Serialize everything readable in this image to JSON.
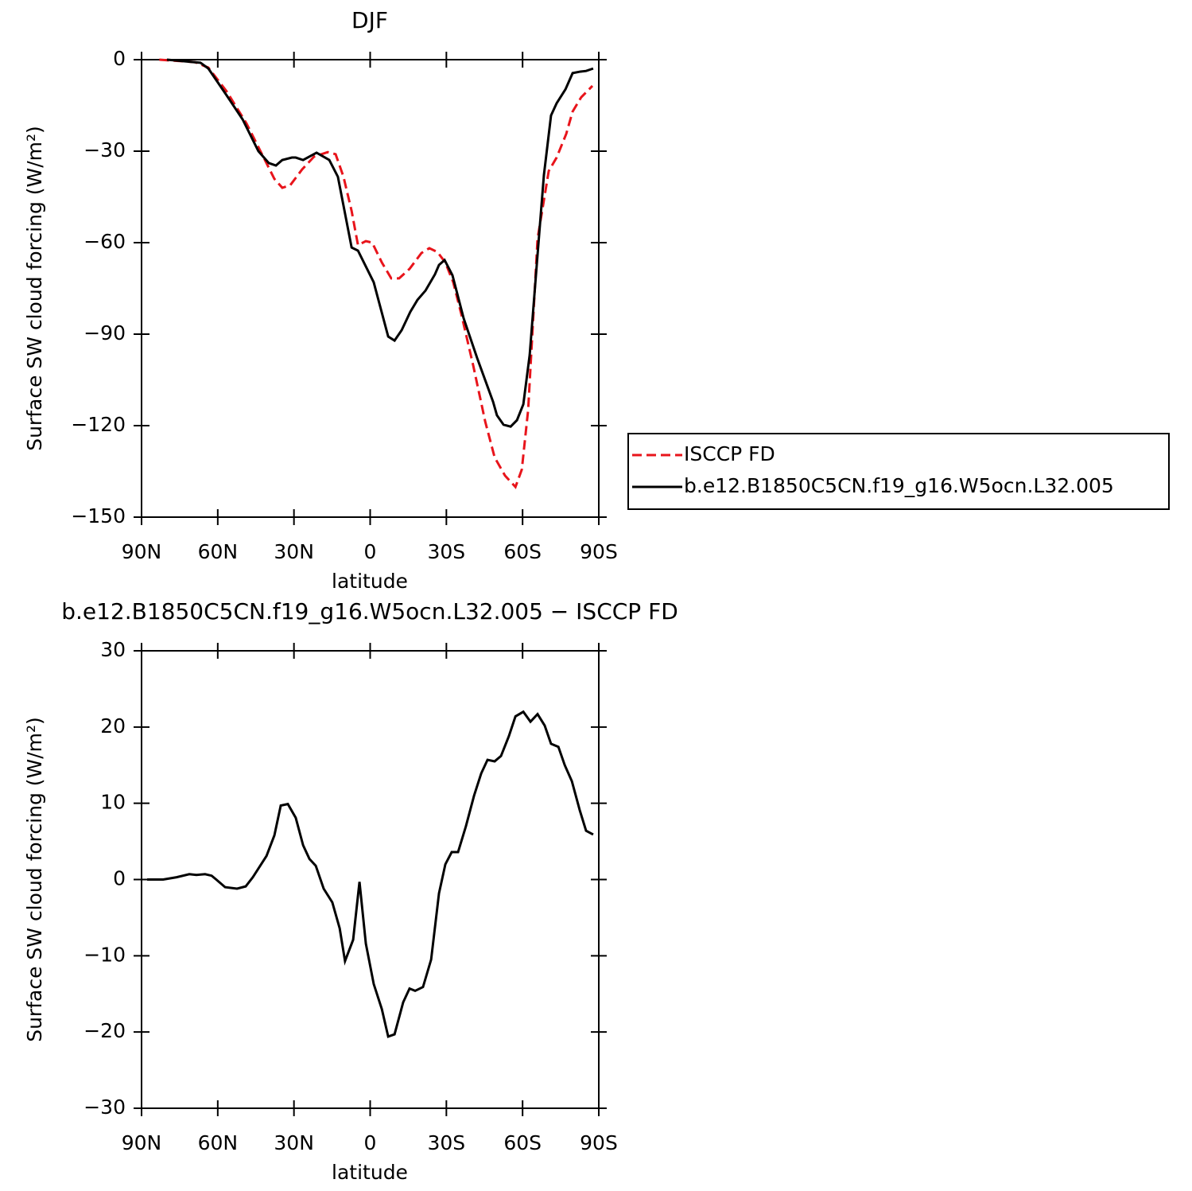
{
  "chart_data": [
    {
      "type": "line",
      "title": "DJF",
      "xlabel": "latitude",
      "ylabel": "Surface SW cloud forcing (W/m²)",
      "xlim": [
        90,
        -90
      ],
      "xticks": [
        {
          "value": 90,
          "label": "90N"
        },
        {
          "value": 60,
          "label": "60N"
        },
        {
          "value": 30,
          "label": "30N"
        },
        0,
        {
          "value": -30,
          "label": "30S"
        },
        {
          "value": -60,
          "label": "60S"
        },
        {
          "value": -90,
          "label": "90S"
        }
      ],
      "ylim": [
        -150,
        0
      ],
      "yticks": [
        {
          "value": -150,
          "label": "−150"
        },
        {
          "value": -120,
          "label": "−120"
        },
        {
          "value": -90,
          "label": "−90"
        },
        {
          "value": -60,
          "label": "−60"
        },
        {
          "value": -30,
          "label": "−30"
        },
        0
      ],
      "legend": "outside-right",
      "series": [
        {
          "name": "ISCCP FD",
          "color": "#e8141b",
          "line_style": "dashed",
          "x": [
            83,
            69,
            63.7,
            56.5,
            48.7,
            42.4,
            37.7,
            34.6,
            31.5,
            26.8,
            22.1,
            16.7,
            13.6,
            10.5,
            7.3,
            4.8,
            1.7,
            -0.8,
            -4.6,
            -8.3,
            -11.4,
            -15.5,
            -20.2,
            -23.3,
            -26.5,
            -29.6,
            -32.7,
            -35.9,
            -40.6,
            -45.3,
            -49,
            -53.1,
            -57.2,
            -59.7,
            -62.2,
            -65.9,
            -70.3,
            -73.4,
            -77.2,
            -79.7,
            -83.1,
            -87.5
          ],
          "values": [
            0,
            -0.8,
            -2.6,
            -10.4,
            -20.9,
            -31.3,
            -39.1,
            -42,
            -41.2,
            -36,
            -31.8,
            -30.3,
            -31,
            -38.4,
            -49.6,
            -60.8,
            -59.5,
            -60,
            -66.5,
            -71.7,
            -71.7,
            -68.6,
            -63.4,
            -61.8,
            -63.1,
            -66.5,
            -73,
            -83.5,
            -100.4,
            -118.7,
            -130.4,
            -136.4,
            -140.1,
            -134.4,
            -114.8,
            -58.7,
            -36.5,
            -32.1,
            -24.3,
            -17,
            -12.3,
            -8.6
          ]
        },
        {
          "name": "b.e12.B1850C5CN.f19_g16.W5ocn.L32.005",
          "color": "#000000",
          "line_style": "solid",
          "x": [
            80,
            66.8,
            63.7,
            56.5,
            50.2,
            44,
            39.9,
            37.1,
            34.6,
            30.8,
            29.3,
            26.4,
            21.1,
            16.1,
            12.7,
            7.3,
            4.8,
            -1.4,
            -7.1,
            -9.6,
            -12.4,
            -15.8,
            -18.6,
            -21.8,
            -25.5,
            -27.1,
            -29.3,
            -32.4,
            -36.8,
            -42.1,
            -48.4,
            -49.9,
            -52.5,
            -55.3,
            -57.8,
            -60.3,
            -62.8,
            -65.9,
            -68.4,
            -71.2,
            -73.4,
            -76.9,
            -79.7,
            -82.8,
            -85,
            -87.8
          ],
          "values": [
            0,
            -1,
            -2.9,
            -11.7,
            -19.6,
            -30,
            -33.9,
            -34.7,
            -32.9,
            -32.1,
            -32.1,
            -32.9,
            -30.5,
            -32.9,
            -38.4,
            -61.6,
            -62.6,
            -73,
            -90.8,
            -92.1,
            -88.7,
            -82.7,
            -78.8,
            -75.7,
            -70.4,
            -67.3,
            -65.7,
            -70.7,
            -84.8,
            -97.8,
            -112.2,
            -116.6,
            -119.7,
            -120.3,
            -118.2,
            -113,
            -96.8,
            -63.9,
            -37.8,
            -18.3,
            -14.3,
            -9.7,
            -4.4,
            -3.9,
            -3.7,
            -2.9
          ]
        }
      ]
    },
    {
      "type": "line",
      "title": "b.e12.B1850C5CN.f19_g16.W5ocn.L32.005 − ISCCP FD",
      "xlabel": "latitude",
      "ylabel": "Surface SW cloud forcing (W/m²)",
      "xlim": [
        90,
        -90
      ],
      "xticks": [
        {
          "value": 90,
          "label": "90N"
        },
        {
          "value": 60,
          "label": "60N"
        },
        {
          "value": 30,
          "label": "30N"
        },
        0,
        {
          "value": -30,
          "label": "30S"
        },
        {
          "value": -60,
          "label": "60S"
        },
        {
          "value": -90,
          "label": "90S"
        }
      ],
      "ylim": [
        -30,
        30
      ],
      "yticks": [
        {
          "value": -30,
          "label": "−30"
        },
        {
          "value": -20,
          "label": "−20"
        },
        {
          "value": -10,
          "label": "−10"
        },
        0,
        10,
        20,
        30
      ],
      "series": [
        {
          "color": "#000000",
          "line_style": "solid",
          "x": [
            87.8,
            81.5,
            76.2,
            71.2,
            68.4,
            65,
            62.4,
            60.6,
            57.1,
            52.4,
            49,
            46.2,
            40.8,
            37.7,
            35.2,
            32.4,
            29.3,
            26.4,
            23.9,
            21.4,
            18.3,
            14.9,
            12,
            9.9,
            6.7,
            4.2,
            1.7,
            -1.4,
            -4.6,
            -7.1,
            -9.6,
            -13,
            -15.5,
            -17.7,
            -20.8,
            -24,
            -27.1,
            -29.6,
            -32.1,
            -34.6,
            -37.7,
            -40.9,
            -43.7,
            -46.2,
            -49,
            -51.5,
            -54.6,
            -57.2,
            -60.3,
            -63.1,
            -65.9,
            -68.7,
            -71.2,
            -74.1,
            -76.6,
            -79.4,
            -82.5,
            -85,
            -87.8
          ],
          "values": [
            0,
            0,
            0.3,
            0.7,
            0.6,
            0.7,
            0.5,
            0,
            -1,
            -1.2,
            -0.9,
            0.3,
            3.1,
            5.8,
            9.7,
            9.9,
            8.1,
            4.5,
            2.7,
            1.8,
            -1.2,
            -3,
            -6.4,
            -10.7,
            -7.9,
            -0.3,
            -8.4,
            -13.7,
            -17,
            -20.6,
            -20.3,
            -16.1,
            -14.3,
            -14.6,
            -14.1,
            -10.5,
            -1.8,
            2,
            3.6,
            3.6,
            7,
            11,
            13.9,
            15.7,
            15.5,
            16.2,
            18.8,
            21.4,
            22,
            20.7,
            21.7,
            20.2,
            17.8,
            17.4,
            15,
            12.9,
            9.1,
            6.4,
            5.9
          ]
        }
      ]
    }
  ]
}
